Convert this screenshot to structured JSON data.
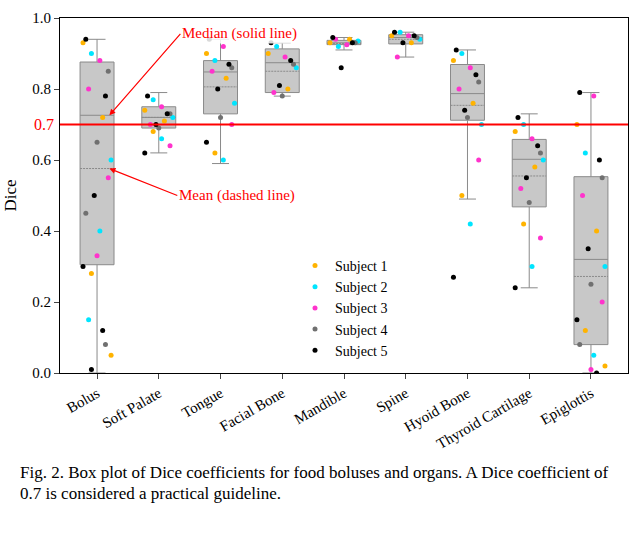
{
  "chart_data": {
    "type": "box",
    "y_label": "Dice",
    "caption": "Fig. 2. Box plot of Dice coefficients for food boluses and organs. A Dice coefficient of 0.7 is considered a practical guideline.",
    "categories": [
      "Bolus",
      "Soft Palate",
      "Tongue",
      "Facial Bone",
      "Mandible",
      "Spine",
      "Hyoid Bone",
      "Thyroid Cartilage",
      "Epiglottis"
    ],
    "lowerfence": [
      0.0,
      0.62,
      0.59,
      0.78,
      0.91,
      0.89,
      0.49,
      0.24,
      0.0
    ],
    "q1": [
      0.305,
      0.69,
      0.73,
      0.79,
      0.925,
      0.927,
      0.712,
      0.468,
      0.08
    ],
    "median": [
      0.726,
      0.72,
      0.848,
      0.874,
      0.93,
      0.945,
      0.787,
      0.602,
      0.32
    ],
    "mean": [
      0.576,
      0.72,
      0.806,
      0.85,
      0.928,
      0.94,
      0.754,
      0.555,
      0.272
    ],
    "q3": [
      0.876,
      0.75,
      0.88,
      0.913,
      0.937,
      0.953,
      0.869,
      0.658,
      0.553
    ],
    "upperfence": [
      0.94,
      0.79,
      0.94,
      0.93,
      0.945,
      0.96,
      0.91,
      0.73,
      0.79
    ],
    "color": "#c8c8c8",
    "series": [
      {
        "name": "Subject 1",
        "color": "#ffb300",
        "values": [
          [
            0.93,
            0.72,
            0.28,
            0.05
          ],
          [
            0.74,
            0.71,
            0.68
          ],
          [
            0.9,
            0.83,
            0.62
          ],
          [
            0.9,
            0.8
          ],
          [
            0.93,
            0.94
          ],
          [
            0.95,
            0.93
          ],
          [
            0.88,
            0.76,
            0.5
          ],
          [
            0.68,
            0.58,
            0.42
          ],
          [
            0.7,
            0.4,
            0.12,
            0.02
          ]
        ]
      },
      {
        "name": "Subject 2",
        "color": "#00e5ff",
        "values": [
          [
            0.9,
            0.6,
            0.4,
            0.15
          ],
          [
            0.77,
            0.72,
            0.66
          ],
          [
            0.88,
            0.76,
            0.6
          ],
          [
            0.92,
            0.86
          ],
          [
            0.92,
            0.935
          ],
          [
            0.96,
            0.94
          ],
          [
            0.9,
            0.7,
            0.42
          ],
          [
            0.7,
            0.6,
            0.3
          ],
          [
            0.62,
            0.3,
            0.05
          ]
        ]
      },
      {
        "name": "Subject 3",
        "color": "#ff33cc",
        "values": [
          [
            0.88,
            0.8,
            0.55,
            0.33
          ],
          [
            0.75,
            0.7,
            0.64
          ],
          [
            0.92,
            0.85,
            0.7
          ],
          [
            0.89,
            0.79
          ],
          [
            0.925,
            0.94
          ],
          [
            0.95,
            0.89
          ],
          [
            0.86,
            0.8,
            0.6
          ],
          [
            0.66,
            0.52,
            0.38
          ],
          [
            0.78,
            0.5,
            0.2,
            0.01
          ]
        ]
      },
      {
        "name": "Subject 4",
        "color": "#707070",
        "values": [
          [
            0.85,
            0.65,
            0.45,
            0.08
          ],
          [
            0.73,
            0.69
          ],
          [
            0.86,
            0.72
          ],
          [
            0.87,
            0.78
          ],
          [
            0.93
          ],
          [
            0.945
          ],
          [
            0.82,
            0.72
          ],
          [
            0.62,
            0.48
          ],
          [
            0.55,
            0.25,
            0.08
          ]
        ]
      },
      {
        "name": "Subject 5",
        "color": "#000000",
        "values": [
          [
            0.94,
            0.78,
            0.5,
            0.3,
            0.12,
            0.01
          ],
          [
            0.78,
            0.73,
            0.7,
            0.62
          ],
          [
            0.94,
            0.87,
            0.8,
            0.65
          ],
          [
            0.93,
            0.88,
            0.81
          ],
          [
            0.945,
            0.93,
            0.86
          ],
          [
            0.96,
            0.95,
            0.93
          ],
          [
            0.91,
            0.84,
            0.74,
            0.27
          ],
          [
            0.72,
            0.64,
            0.55,
            0.24
          ],
          [
            0.79,
            0.6,
            0.35,
            0.15,
            0.0
          ]
        ]
      }
    ],
    "ylim": [
      0,
      1
    ],
    "yticks": [
      {
        "value": 0,
        "label": "0.0"
      },
      0.2,
      0.4,
      0.6,
      0.8,
      {
        "value": 1,
        "label": "1.0"
      }
    ],
    "guideline": {
      "value": 0.7,
      "label": "0.7",
      "color": "#ff0000"
    },
    "annotations": [
      {
        "text": "Median (solid line)",
        "category": "Bolus",
        "stat": "median",
        "color": "#ff0000"
      },
      {
        "text": "Mean (dashed line)",
        "category": "Bolus",
        "stat": "mean",
        "color": "#ff0000"
      }
    ],
    "legend": "lower center",
    "grid": false
  }
}
